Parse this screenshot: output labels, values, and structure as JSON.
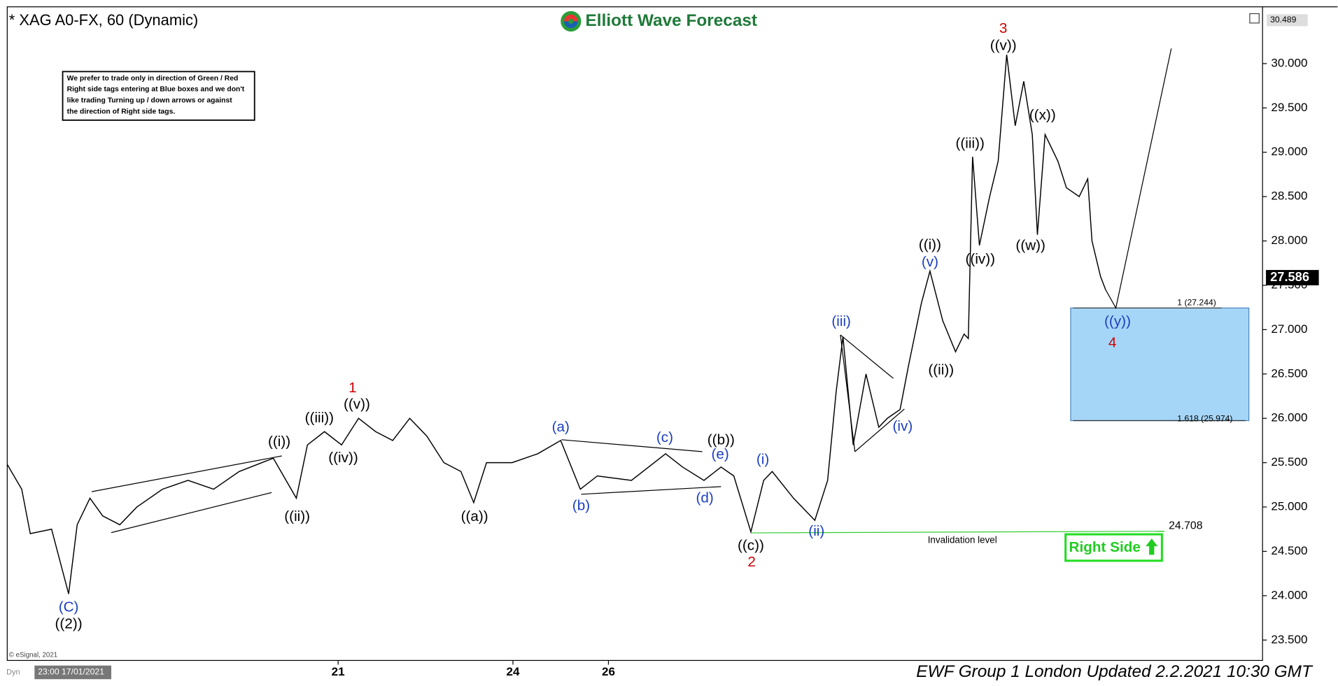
{
  "chart_data": {
    "type": "line",
    "title": "* XAG A0-FX, 60 (Dynamic)",
    "brand": "Elliott Wave Forecast",
    "notice": [
      "We prefer to trade only in direction of Green / Red",
      "Right side tags entering at Blue boxes and we don't",
      "like trading Turning up / down arrows or against",
      "the direction of Right side tags."
    ],
    "source": "© eSignal, 2021",
    "start_label": "23:00 17/01/2021",
    "dyn_label": "Dyn",
    "footer": "EWF Group 1 London Updated 2.2.2021 10:30 GMT",
    "right_side": "Right Side",
    "xlim": [
      0.8,
      148
    ],
    "ylim": [
      23.27,
      30.64
    ],
    "xticks": [
      {
        "value": 39.6,
        "label": "21"
      },
      {
        "value": 60.1,
        "label": "24"
      },
      {
        "value": 71.3,
        "label": "26"
      }
    ],
    "yticks": [
      {
        "value": 23.5,
        "label": "23.500"
      },
      {
        "value": 24,
        "label": "24.000"
      },
      {
        "value": 24.5,
        "label": "24.500"
      },
      {
        "value": 25,
        "label": "25.000"
      },
      {
        "value": 25.5,
        "label": "25.500"
      },
      {
        "value": 26,
        "label": "26.000"
      },
      {
        "value": 26.5,
        "label": "26.500"
      },
      {
        "value": 27,
        "label": "27.000"
      },
      {
        "value": 27.5,
        "label": "27.500"
      },
      {
        "value": 28,
        "label": "28.000"
      },
      {
        "value": 28.5,
        "label": "28.500"
      },
      {
        "value": 29,
        "label": "29.000"
      },
      {
        "value": 29.5,
        "label": "29.500"
      },
      {
        "value": 30,
        "label": "30.000"
      }
    ],
    "top_price": {
      "value": 30.489,
      "label": "30.489"
    },
    "last_price": {
      "value": 27.586,
      "label": "27.586"
    },
    "series": [
      {
        "color": "#000000",
        "x": [
          0.8,
          2.5,
          3.5,
          6,
          8,
          9,
          10.5,
          12,
          14,
          16,
          19,
          22,
          25,
          28,
          32,
          34.7,
          36,
          38,
          40,
          42,
          44,
          46,
          48,
          50,
          52,
          54,
          55.5,
          57,
          60,
          63,
          65.7,
          68,
          70,
          74,
          78,
          80,
          82.5,
          84.5,
          86,
          88,
          89.5,
          90.5,
          93,
          95.5,
          97,
          98,
          98.8,
          100,
          101.5,
          103,
          104,
          105.5,
          106.5,
          108,
          109,
          110.5,
          112,
          113,
          113.5,
          114,
          114.8,
          116,
          117,
          118,
          119,
          120,
          121,
          121.6,
          122.5,
          124,
          125,
          126.5,
          127.5,
          128,
          129,
          129.6
        ],
        "values": [
          25.48,
          25.2,
          24.7,
          24.75,
          24.02,
          24.8,
          25.1,
          24.9,
          24.8,
          25.0,
          25.2,
          25.3,
          25.2,
          25.4,
          25.55,
          25.1,
          25.7,
          25.85,
          25.7,
          26.0,
          25.85,
          25.75,
          26.0,
          25.8,
          25.5,
          25.4,
          25.05,
          25.5,
          25.5,
          25.6,
          25.75,
          25.2,
          25.35,
          25.3,
          25.6,
          25.45,
          25.3,
          25.45,
          25.35,
          24.72,
          25.3,
          25.4,
          25.1,
          24.85,
          25.3,
          26.3,
          26.92,
          25.7,
          26.5,
          25.9,
          26.0,
          26.1,
          26.6,
          27.3,
          27.66,
          27.1,
          26.75,
          26.95,
          26.9,
          28.95,
          27.95,
          28.5,
          28.9,
          30.1,
          29.3,
          29.8,
          29.2,
          28.07,
          29.2,
          28.9,
          28.6,
          28.5,
          28.7,
          28.0,
          27.6,
          27.45
        ]
      }
    ],
    "projection": {
      "x": [
        129.6,
        130.8,
        137.3
      ],
      "values": [
        27.45,
        27.244,
        30.17
      ]
    },
    "fib_box": {
      "upper": 27.244,
      "lower": 25.974,
      "upper_label": "1 (27.244)",
      "lower_label": "1.618 (25.974)"
    },
    "invalidation": {
      "value": 24.708,
      "label": "24.708",
      "text": "Invalidation level"
    },
    "wave_labels": [
      {
        "text": "(C)",
        "color": "#1b3fbf"
      },
      {
        "text": "((2))",
        "color": "#000000"
      },
      {
        "text": "((i))",
        "color": "#000000"
      },
      {
        "text": "((ii))",
        "color": "#000000"
      },
      {
        "text": "((iii))",
        "color": "#000000"
      },
      {
        "text": "((iv))",
        "color": "#000000"
      },
      {
        "text": "((v))",
        "color": "#000000"
      },
      {
        "text": "1",
        "color": "#cc0000"
      },
      {
        "text": "((a))",
        "color": "#000000"
      },
      {
        "text": "(a)",
        "color": "#1b3fbf"
      },
      {
        "text": "(b)",
        "color": "#1b3fbf"
      },
      {
        "text": "(c)",
        "color": "#1b3fbf"
      },
      {
        "text": "(d)",
        "color": "#1b3fbf"
      },
      {
        "text": "(e)",
        "color": "#1b3fbf"
      },
      {
        "text": "((b))",
        "color": "#000000"
      },
      {
        "text": "((c))",
        "color": "#000000"
      },
      {
        "text": "2",
        "color": "#cc0000"
      },
      {
        "text": "(i)",
        "color": "#1b3fbf"
      },
      {
        "text": "(ii)",
        "color": "#1b3fbf"
      },
      {
        "text": "(iii)",
        "color": "#1b3fbf"
      },
      {
        "text": "(iv)",
        "color": "#1b3fbf"
      },
      {
        "text": "(v)",
        "color": "#1b3fbf"
      },
      {
        "text": "((i))",
        "color": "#000000"
      },
      {
        "text": "((ii))",
        "color": "#000000"
      },
      {
        "text": "((iii))",
        "color": "#000000"
      },
      {
        "text": "((iv))",
        "color": "#000000"
      },
      {
        "text": "((v))",
        "color": "#000000"
      },
      {
        "text": "3",
        "color": "#cc0000"
      },
      {
        "text": "((w))",
        "color": "#000000"
      },
      {
        "text": "((x))",
        "color": "#000000"
      },
      {
        "text": "((y))",
        "color": "#1b3fbf"
      },
      {
        "text": "4",
        "color": "#cc0000"
      }
    ]
  }
}
